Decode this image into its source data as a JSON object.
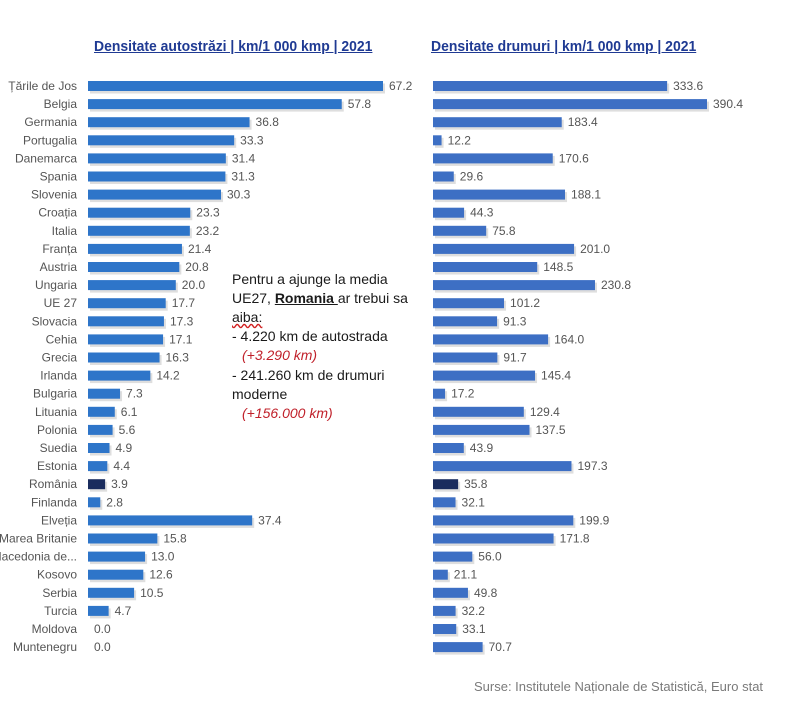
{
  "chart_data": [
    {
      "type": "bar",
      "orientation": "horizontal",
      "title": "Densitate autostrăzi | km/1 000 kmp | 2021",
      "categories": [
        "Țările de Jos",
        "Belgia",
        "Germania",
        "Portugalia",
        "Danemarca",
        "Spania",
        "Slovenia",
        "Croația",
        "Italia",
        "Franța",
        "Austria",
        "Ungaria",
        "UE 27",
        "Slovacia",
        "Cehia",
        "Grecia",
        "Irlanda",
        "Bulgaria",
        "Lituania",
        "Polonia",
        "Suedia",
        "Estonia",
        "România",
        "Finlanda",
        "Elveția",
        "Marea Britanie",
        "Macedonia de...",
        "Kosovo",
        "Serbia",
        "Turcia",
        "Moldova",
        "Muntenegru"
      ],
      "values": [
        67.2,
        57.8,
        36.8,
        33.3,
        31.4,
        31.3,
        30.3,
        23.3,
        23.2,
        21.4,
        20.8,
        20.0,
        17.7,
        17.3,
        17.1,
        16.3,
        14.2,
        7.3,
        6.1,
        5.6,
        4.9,
        4.4,
        3.9,
        2.8,
        37.4,
        15.8,
        13.0,
        12.6,
        10.5,
        4.7,
        0.0,
        0.0
      ],
      "value_labels": [
        "67.2",
        "57.8",
        "36.8",
        "33.3",
        "31.4",
        "31.3",
        "30.3",
        "23.3",
        "23.2",
        "21.4",
        "20.8",
        "20.0",
        "17.7",
        "17.3",
        "17.1",
        "16.3",
        "14.2",
        "7.3",
        "6.1",
        "5.6",
        "4.9",
        "4.4",
        "3.9",
        "2.8",
        "37.4",
        "15.8",
        "13.0",
        "12.6",
        "10.5",
        "4.7",
        "0.0",
        "0.0"
      ],
      "highlight_category": "România",
      "bar_color": "#2e75c9",
      "highlight_color": "#1a2c5e",
      "grid": false,
      "legend": "none"
    },
    {
      "type": "bar",
      "orientation": "horizontal",
      "title": "Densitate drumuri | km/1 000 kmp | 2021",
      "categories": [
        "Țările de Jos",
        "Belgia",
        "Germania",
        "Portugalia",
        "Danemarca",
        "Spania",
        "Slovenia",
        "Croația",
        "Italia",
        "Franța",
        "Austria",
        "Ungaria",
        "UE 27",
        "Slovacia",
        "Cehia",
        "Grecia",
        "Irlanda",
        "Bulgaria",
        "Lituania",
        "Polonia",
        "Suedia",
        "Estonia",
        "România",
        "Finlanda",
        "Elveția",
        "Marea Britanie",
        "Macedonia de...",
        "Kosovo",
        "Serbia",
        "Turcia",
        "Moldova",
        "Muntenegru"
      ],
      "values": [
        333.6,
        390.4,
        183.4,
        12.2,
        170.6,
        29.6,
        188.1,
        44.3,
        75.8,
        201.0,
        148.5,
        230.8,
        101.2,
        91.3,
        164.0,
        91.7,
        145.4,
        17.2,
        129.4,
        137.5,
        43.9,
        197.3,
        35.8,
        32.1,
        199.9,
        171.8,
        56.0,
        21.1,
        49.8,
        32.2,
        33.1,
        70.7
      ],
      "value_labels": [
        "333.6",
        "390.4",
        "183.4",
        "12.2",
        "170.6",
        "29.6",
        "188.1",
        "44.3",
        "75.8",
        "201.0",
        "148.5",
        "230.8",
        "101.2",
        "91.3",
        "164.0",
        "91.7",
        "145.4",
        "17.2",
        "129.4",
        "137.5",
        "43.9",
        "197.3",
        "35.8",
        "32.1",
        "199.9",
        "171.8",
        "56.0",
        "21.1",
        "49.8",
        "32.2",
        "33.1",
        "70.7"
      ],
      "highlight_category": "România",
      "bar_color": "#3d6fc4",
      "highlight_color": "#1a2c5e",
      "grid": false,
      "legend": "none"
    }
  ],
  "note": {
    "line1": "Pentru a ajunge la media",
    "line2_pre": "UE27, ",
    "line2_bold": "Romania ",
    "line2_post": "ar trebui sa",
    "line3": "aiba:",
    "line4": "- 4.220 km de autostrada",
    "line5": "(+3.290 km)",
    "line6": "- 241.260 km de drumuri",
    "line7": "moderne",
    "line8": "(+156.000 km)"
  },
  "source": "Surse: Institutele Naționale de Statistică, Euro stat"
}
